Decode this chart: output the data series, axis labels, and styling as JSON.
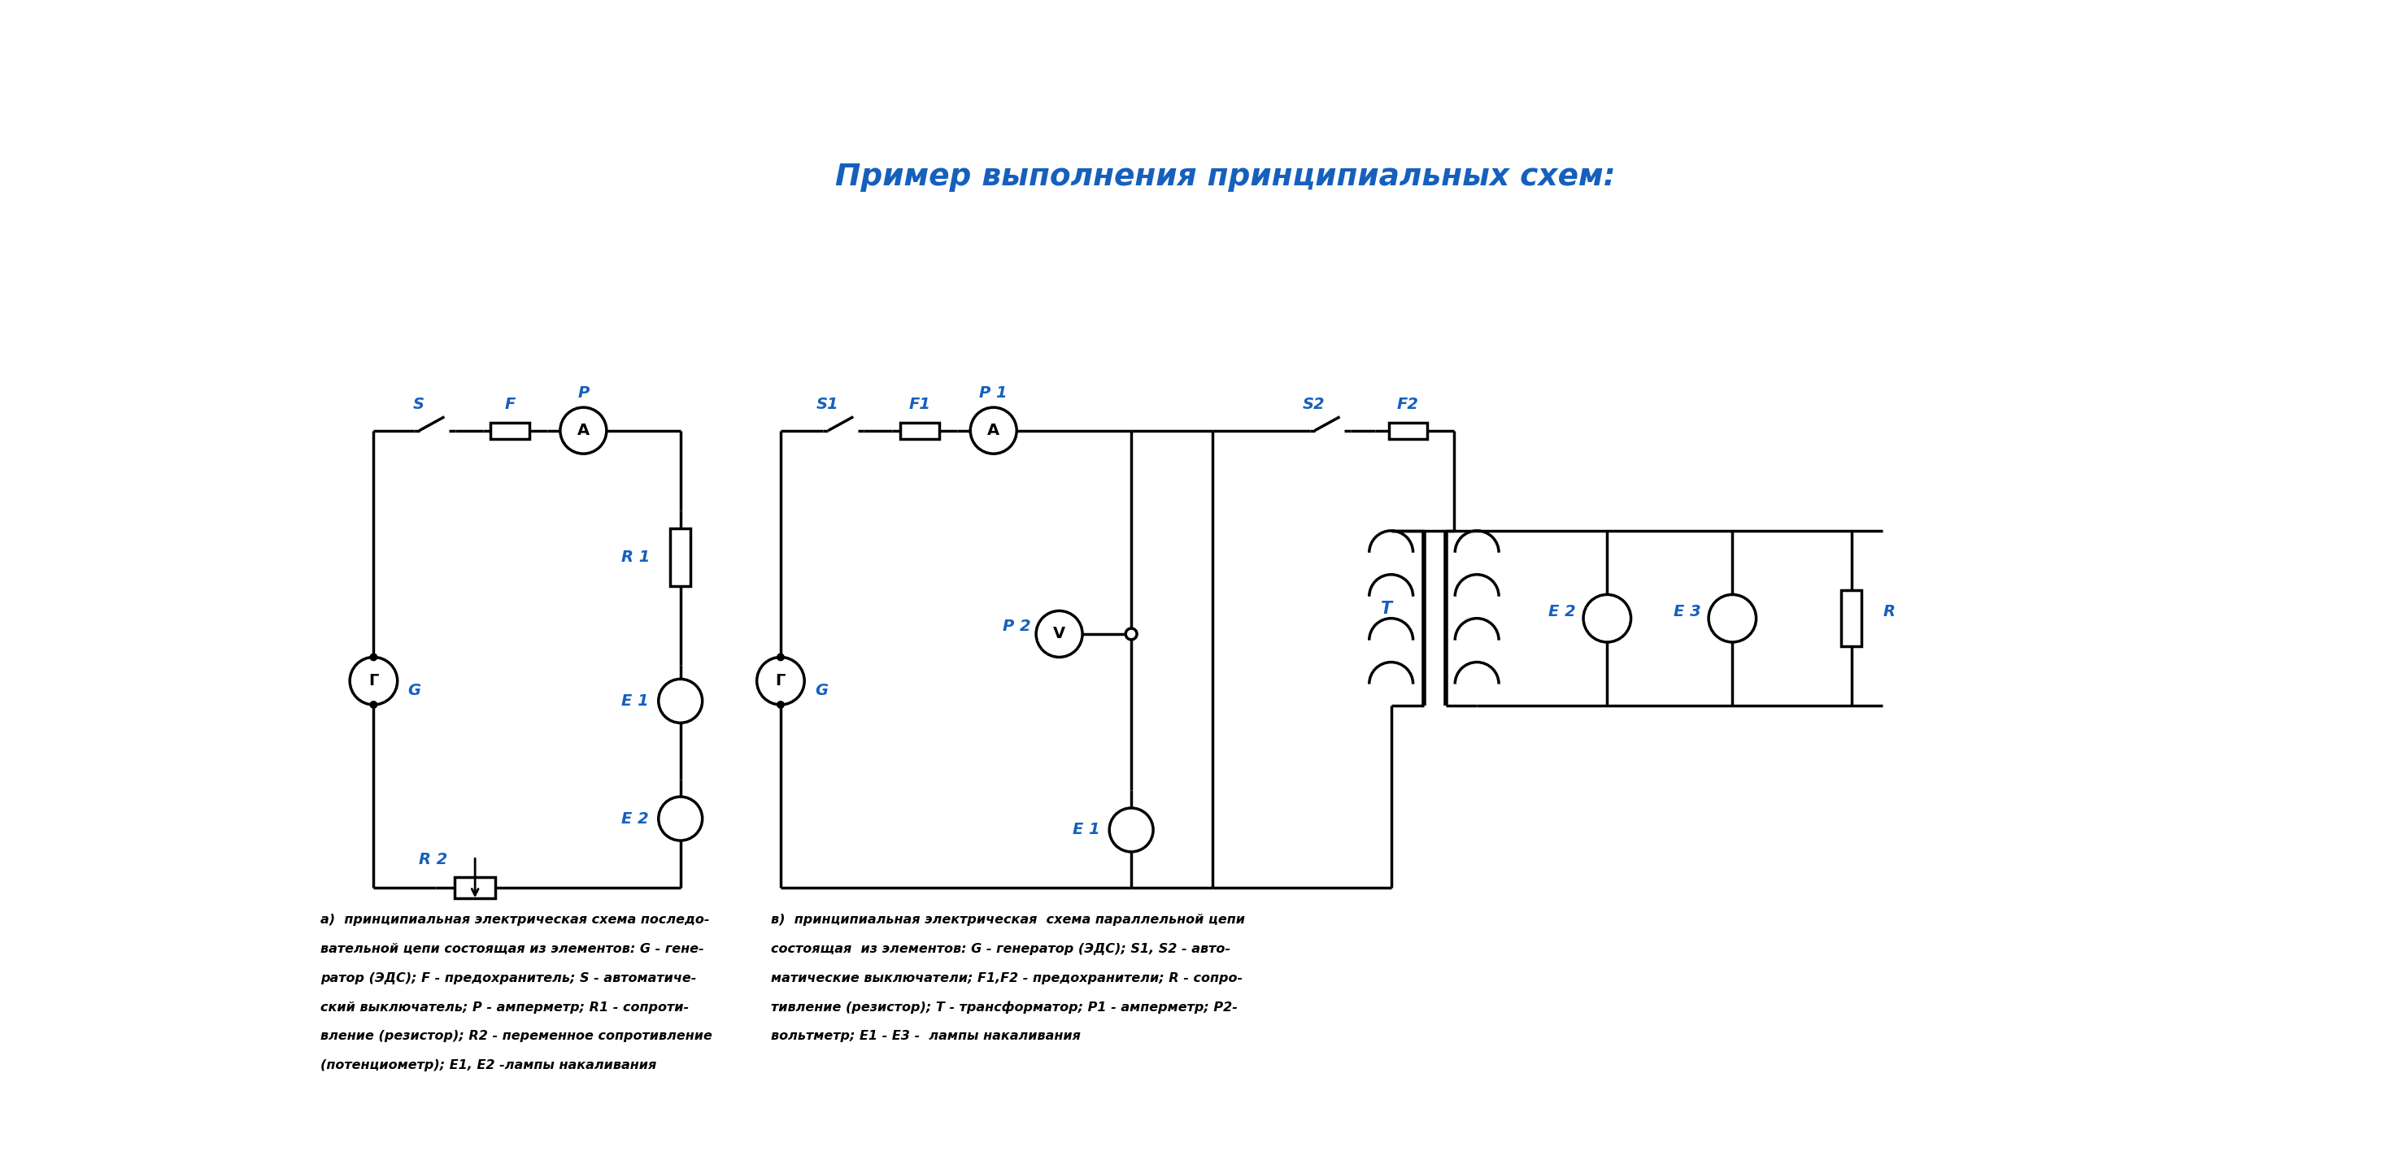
{
  "title": "Пример выполнения принципиальных схем:",
  "title_color": "#1560bd",
  "line_color": "#000000",
  "label_color": "#1560bd",
  "bg_color": "#ffffff",
  "cap_a_lines": [
    "а)  принципиальная электрическая схема последо-",
    "вательной цепи состоящая из элементов: G - гене-",
    "ратор (ЭДС); F - предохранитель; S - автоматиче-",
    "ский выключатель; P - амперметр; R1 - сопроти-",
    "вление (резистор); R2 - переменное сопротивление",
    "(потенциометр); E1, E2 -лампы накаливания"
  ],
  "cap_b_lines": [
    "в)  принципиальная электрическая  схема параллельной цепи",
    "состоящая  из элементов: G - генератор (ЭДС); S1, S2 - авто-",
    "матические выключатели; F1,F2 - предохранители; R - сопро-",
    "тивление (резистор); T - трансформатор; P1 - амперметр; P2-",
    "вольтметр; E1 - E3 -  лампы накаливания"
  ]
}
